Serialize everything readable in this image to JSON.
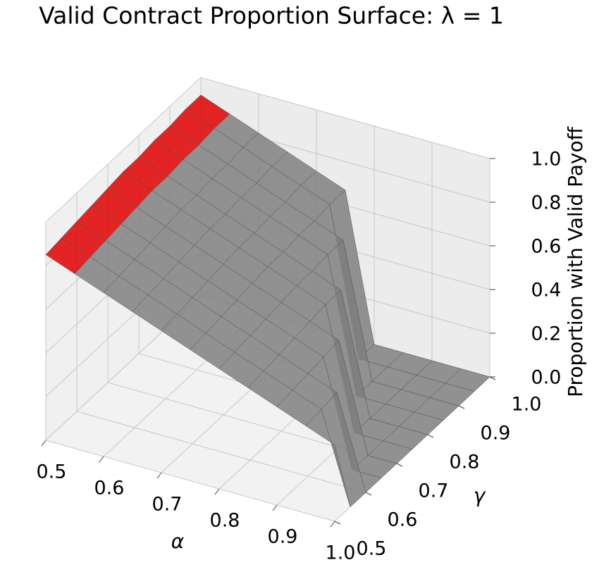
{
  "chart_data": {
    "type": "surface3d",
    "title": "Valid Contract Proportion Surface: λ = 1",
    "x_label": "α",
    "y_label": "γ",
    "z_label": "Proportion with Valid Payoff",
    "x": [
      0.5,
      0.55,
      0.6,
      0.65,
      0.7,
      0.75,
      0.8,
      0.85,
      0.9,
      0.95,
      1.0
    ],
    "y": [
      0.5,
      0.55,
      0.6,
      0.65,
      0.7,
      0.75,
      0.8,
      0.85,
      0.9,
      0.95,
      1.0
    ],
    "z": [
      [
        0.85,
        0.86,
        0.87,
        0.88,
        0.89,
        0.9,
        0.9,
        0.91,
        0.91,
        0.92,
        0.92
      ],
      [
        0.8,
        0.81,
        0.82,
        0.83,
        0.84,
        0.85,
        0.85,
        0.86,
        0.86,
        0.87,
        0.87
      ],
      [
        0.75,
        0.76,
        0.77,
        0.78,
        0.79,
        0.8,
        0.8,
        0.81,
        0.81,
        0.82,
        0.82
      ],
      [
        0.7,
        0.71,
        0.72,
        0.73,
        0.74,
        0.75,
        0.75,
        0.76,
        0.76,
        0.77,
        0.77
      ],
      [
        0.65,
        0.66,
        0.67,
        0.68,
        0.69,
        0.7,
        0.7,
        0.71,
        0.71,
        0.72,
        0.72
      ],
      [
        0.6,
        0.61,
        0.62,
        0.63,
        0.64,
        0.65,
        0.65,
        0.66,
        0.66,
        0.67,
        0.67
      ],
      [
        0.55,
        0.56,
        0.57,
        0.58,
        0.59,
        0.6,
        0.6,
        0.61,
        0.61,
        0,
        0
      ],
      [
        0.5,
        0.51,
        0.52,
        0.53,
        0.54,
        0.55,
        0.55,
        0,
        0,
        0,
        0
      ],
      [
        0.45,
        0.46,
        0.47,
        0.48,
        0.49,
        0,
        0,
        0,
        0,
        0,
        0
      ],
      [
        0.4,
        0.41,
        0.42,
        0,
        0,
        0,
        0,
        0,
        0,
        0,
        0
      ],
      [
        0.35,
        0,
        0,
        0,
        0,
        0,
        0,
        0,
        0,
        0,
        0
      ]
    ],
    "color": "#808080",
    "highlight_color": "#e00000",
    "xlim": [
      0.5,
      1.0
    ],
    "ylim": [
      0.5,
      1.0
    ],
    "zlim": [
      0,
      1.0
    ],
    "xticks": [
      0.5,
      0.6,
      0.7,
      0.8,
      0.9,
      {
        "value": 1.0,
        "label": "1.0"
      }
    ],
    "yticks": [
      0.5,
      0.6,
      0.7,
      0.8,
      0.9,
      {
        "value": 1.0,
        "label": "1.0"
      }
    ],
    "zticks": [
      {
        "value": 0,
        "label": "0.0"
      },
      0.2,
      0.4,
      0.6,
      0.8,
      {
        "value": 1.0,
        "label": "1.0"
      }
    ],
    "grid": true
  }
}
